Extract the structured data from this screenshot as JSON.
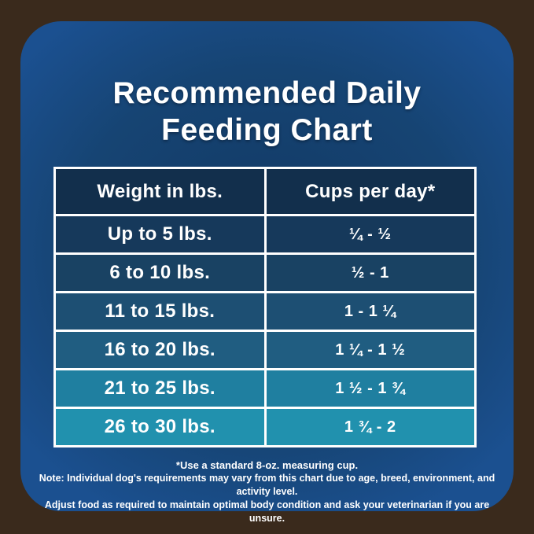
{
  "title": {
    "line1": "Recommended Daily",
    "line2": "Feeding Chart"
  },
  "table": {
    "headers": [
      "Weight in lbs.",
      "Cups per day*"
    ],
    "rows": [
      {
        "weight": "Up to 5 lbs.",
        "cups": "¼  -  ½"
      },
      {
        "weight": "6 to 10 lbs.",
        "cups": "½  - 1"
      },
      {
        "weight": "11 to 15 lbs.",
        "cups": "1  - 1 ¼"
      },
      {
        "weight": "16 to 20 lbs.",
        "cups": "1 ¼  - 1 ½"
      },
      {
        "weight": "21 to 25 lbs.",
        "cups": "1 ½ - 1 ¾"
      },
      {
        "weight": "26 to 30 lbs.",
        "cups": "1 ¾ - 2"
      }
    ],
    "header_color": "#122f4c",
    "row_colors": [
      "#16395b",
      "#194263",
      "#1d4f73",
      "#205d81",
      "#1f7fa0",
      "#2191ae"
    ],
    "border_color": "#ffffff"
  },
  "footnotes": {
    "cup_note": "*Use a standard 8-oz. measuring cup.",
    "note1": "Note: Individual dog's requirements may vary from this chart due to age, breed, environment, and activity level.",
    "note2": "Adjust food as required to maintain optimal body condition and ask your veterinarian if you are unsure."
  },
  "colors": {
    "card_blue_center": "#143e6b",
    "card_blue_edge": "#1b5090",
    "wood_brown": "#3a2a1c",
    "text_white": "#ffffff"
  },
  "chart_data": {
    "type": "table",
    "title": "Recommended Daily Feeding Chart",
    "columns": [
      "Weight in lbs.",
      "Cups per day*"
    ],
    "rows": [
      [
        "Up to 5 lbs.",
        "¼ - ½"
      ],
      [
        "6 to 10 lbs.",
        "½ - 1"
      ],
      [
        "11 to 15 lbs.",
        "1 - 1¼"
      ],
      [
        "16 to 20 lbs.",
        "1¼ - 1½"
      ],
      [
        "21 to 25 lbs.",
        "1½ - 1¾"
      ],
      [
        "26 to 30 lbs.",
        "1¾ - 2"
      ]
    ],
    "cups_numeric_min_max": [
      [
        0.25,
        0.5
      ],
      [
        0.5,
        1
      ],
      [
        1,
        1.25
      ],
      [
        1.25,
        1.5
      ],
      [
        1.5,
        1.75
      ],
      [
        1.75,
        2
      ]
    ],
    "footnote": "*Use a standard 8-oz. measuring cup."
  }
}
